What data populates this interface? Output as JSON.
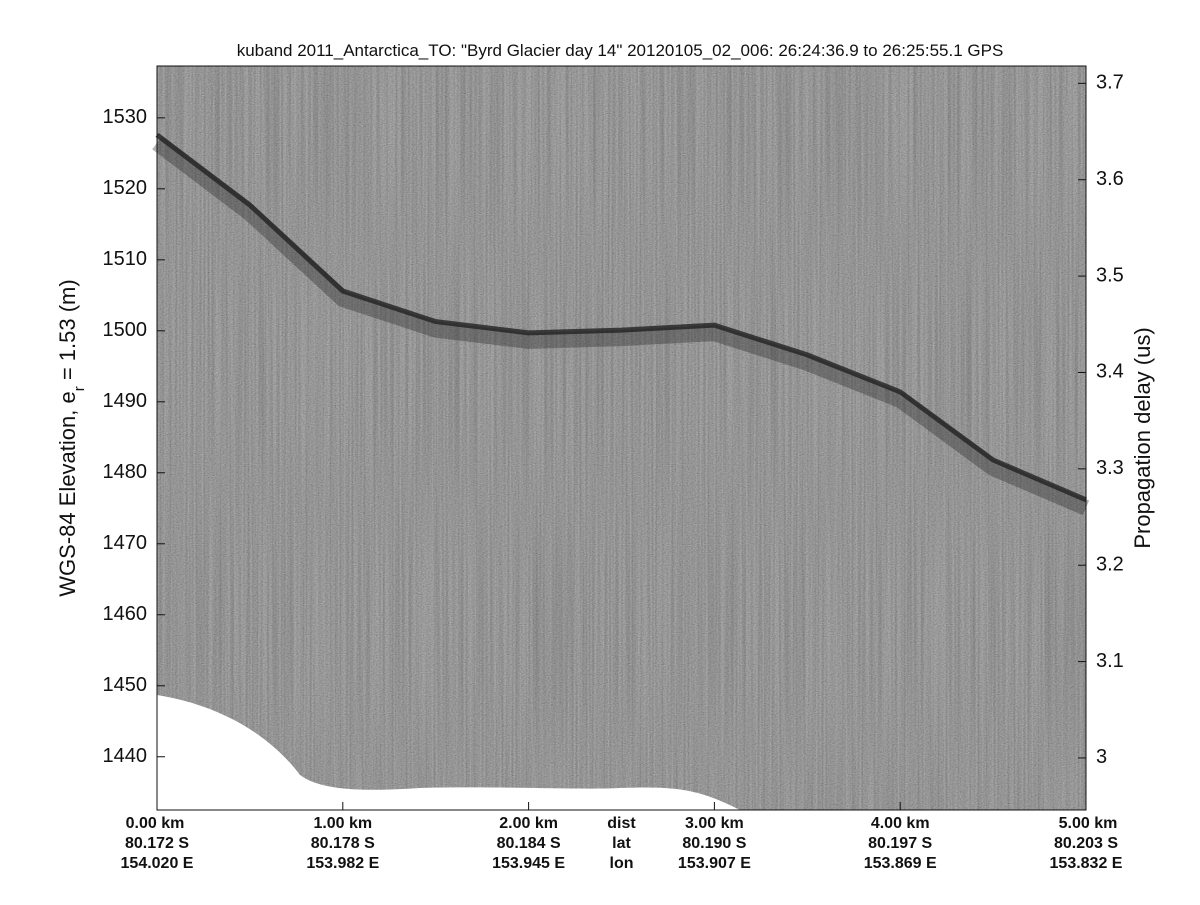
{
  "chart_data": {
    "type": "echogram",
    "title": "kuband 2011_Antarctica_TO: \"Byrd Glacier day 14\"  20120105_02_006: 26:24:36.9 to 26:25:55.1 GPS",
    "ylabel": {
      "text": "WGS-84 Elevation, e",
      "subscript": "r",
      "suffix": " = 1.53 (m)"
    },
    "y2label": "Propagation delay (us)",
    "xlim": [
      0,
      5
    ],
    "xticks": [
      {
        "value": 0,
        "label": "0.00 km"
      },
      {
        "value": 1,
        "label": "1.00 km"
      },
      {
        "value": 2,
        "label": "2.00 km"
      },
      {
        "value": 3,
        "label": "3.00 km"
      },
      {
        "value": 4,
        "label": "4.00 km"
      },
      {
        "value": 5,
        "label": "5.00 km"
      }
    ],
    "lat_labels": [
      "80.172 S",
      "80.178 S",
      "80.184 S",
      "80.190 S",
      "80.197 S",
      "80.203 S"
    ],
    "lon_labels": [
      "154.020 E",
      "153.982 E",
      "153.945 E",
      "153.907 E",
      "153.869 E",
      "153.832 E"
    ],
    "row_names": [
      "dist",
      "lat",
      "lon"
    ],
    "row_names_x": 2.5,
    "ylim": [
      1432.5,
      1537.3
    ],
    "yticks": [
      1440,
      1450,
      1460,
      1470,
      1480,
      1490,
      1500,
      1510,
      1520,
      1530
    ],
    "y2lim": [
      2.946,
      3.718
    ],
    "y2ticks": [
      3,
      3.1,
      3.2,
      3.3,
      3.4,
      3.5,
      3.6,
      3.7
    ],
    "x": [
      0,
      0.5,
      1,
      1.5,
      2,
      2.5,
      3,
      3.5,
      4,
      4.5,
      5
    ],
    "values": [
      1527.6,
      1517.7,
      1505.6,
      1501.3,
      1499.7,
      1500.1,
      1500.8,
      1496.6,
      1491.4,
      1481.8,
      1476.2
    ],
    "color": "#222222"
  }
}
